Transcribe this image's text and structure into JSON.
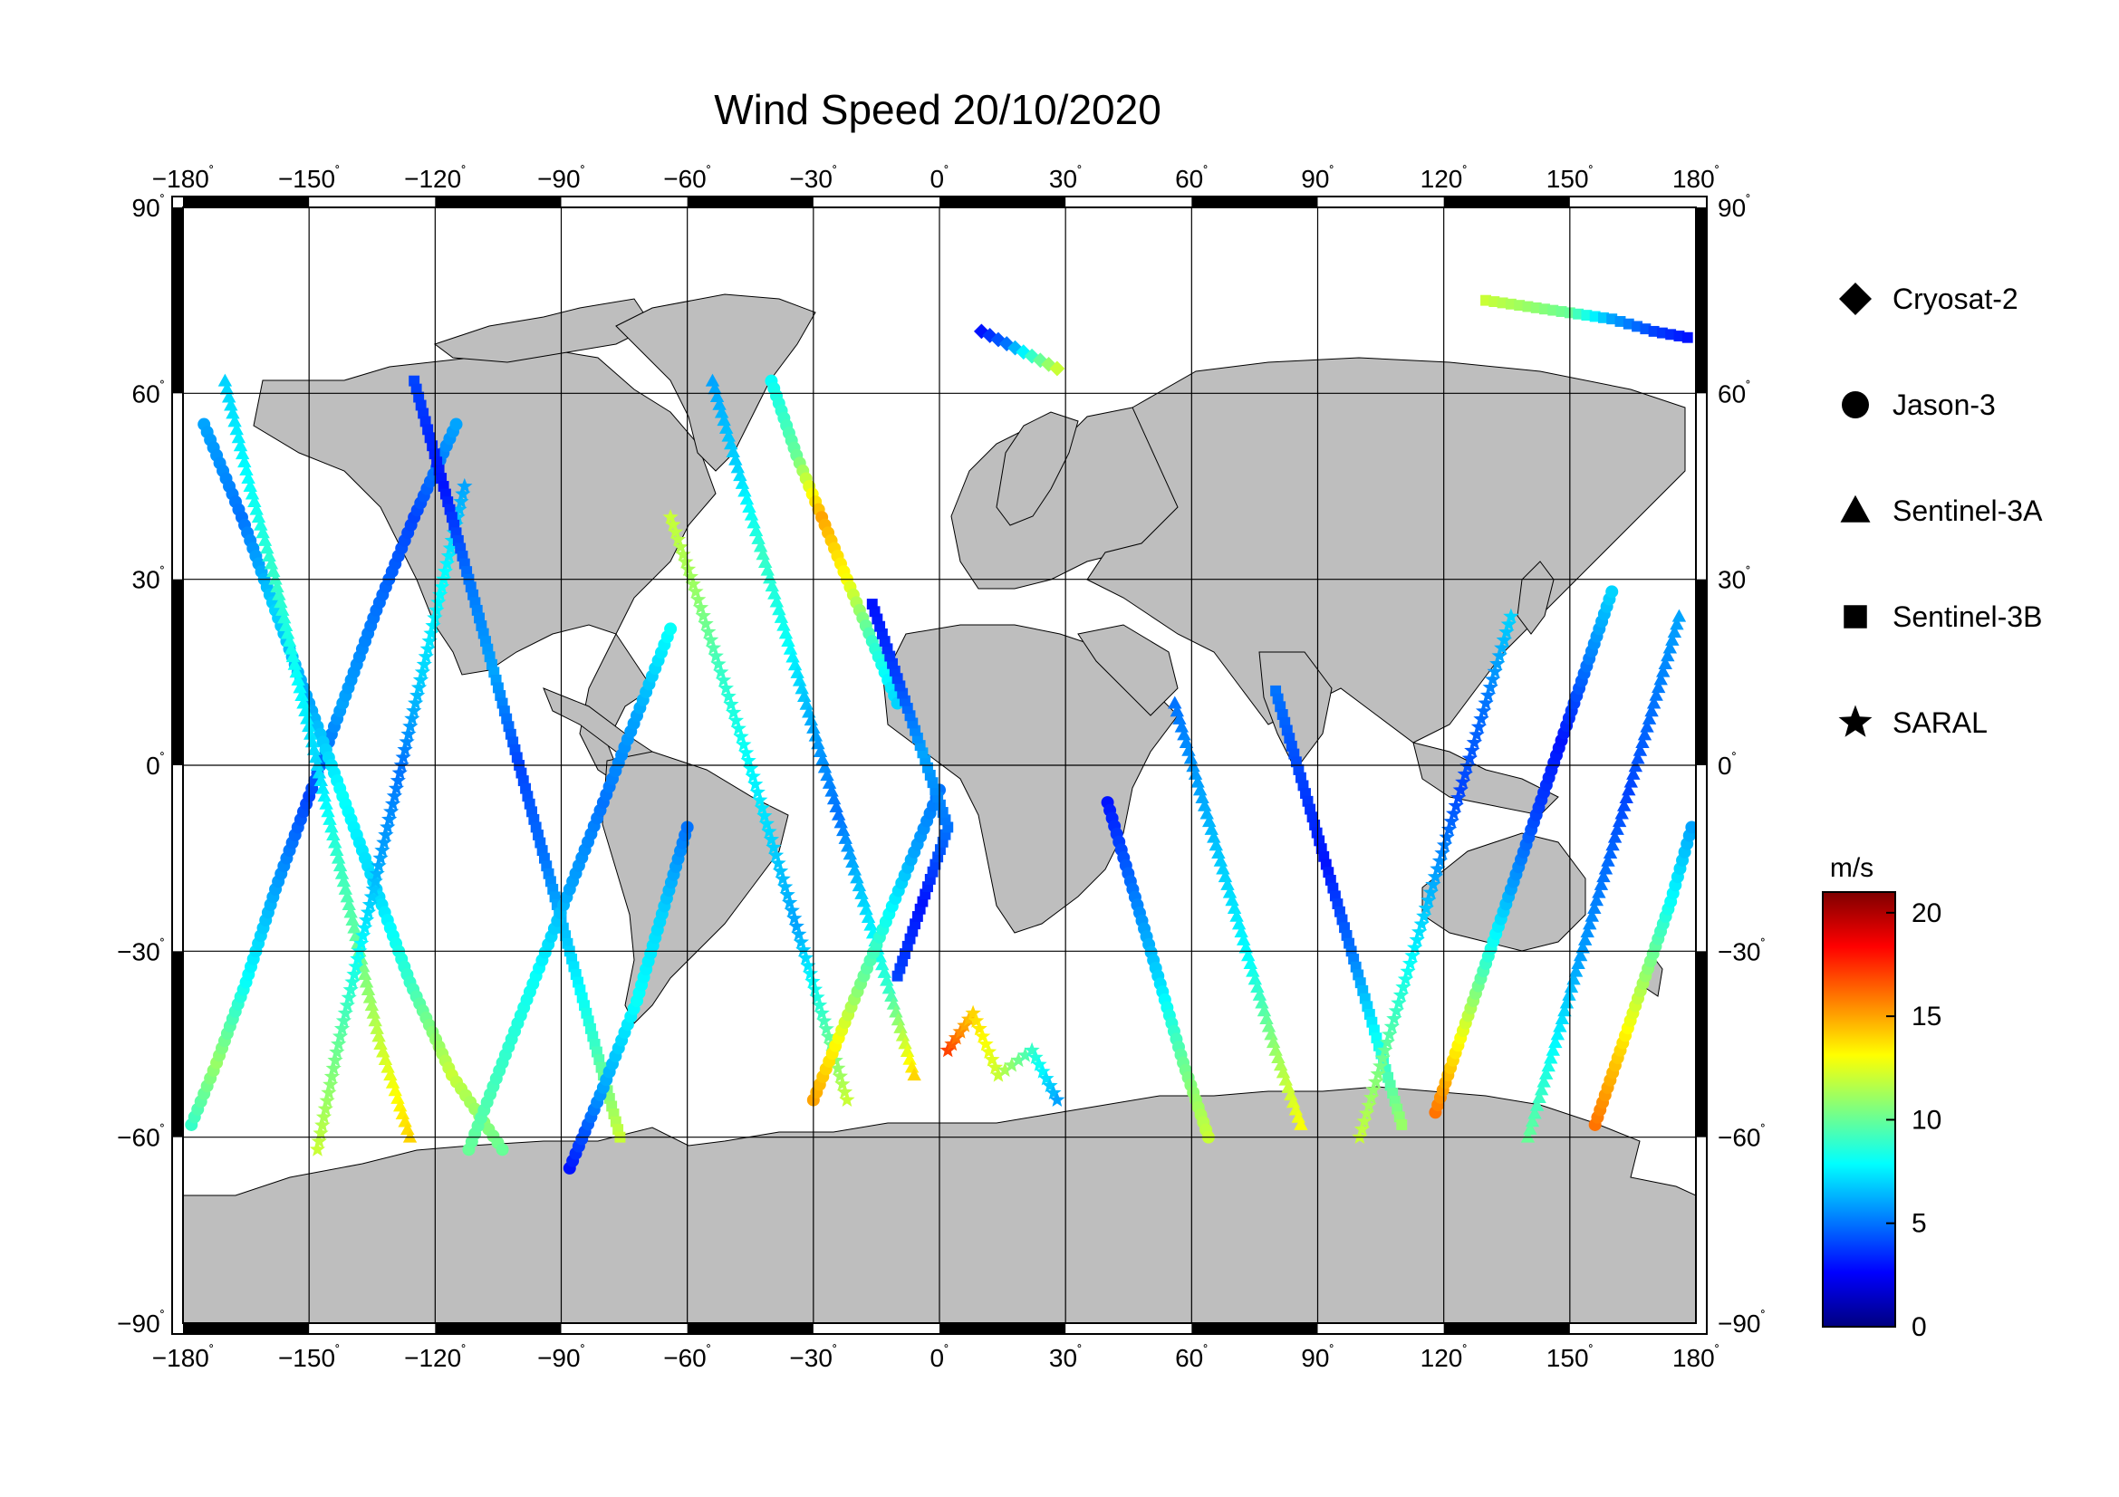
{
  "title": "Wind Speed 20/10/2020",
  "colorbar": {
    "unit": "m/s",
    "ticks": [
      0,
      5,
      10,
      15,
      20
    ],
    "range": [
      0,
      21
    ],
    "colors": [
      "#00007f",
      "#0000ff",
      "#007fff",
      "#00ffff",
      "#7fff7f",
      "#ffff00",
      "#ff7f00",
      "#ff0000",
      "#7f0000"
    ]
  },
  "legend": [
    {
      "label": "Cryosat-2",
      "marker": "diamond"
    },
    {
      "label": "Jason-3",
      "marker": "circle"
    },
    {
      "label": "Sentinel-3A",
      "marker": "triangle"
    },
    {
      "label": "Sentinel-3B",
      "marker": "square"
    },
    {
      "label": "SARAL",
      "marker": "star"
    }
  ],
  "axes": {
    "lon_ticks": [
      -180,
      -150,
      -120,
      -90,
      -60,
      -30,
      0,
      30,
      60,
      90,
      120,
      150,
      180
    ],
    "lat_ticks": [
      90,
      60,
      30,
      0,
      -30,
      -60,
      -90
    ],
    "lon_range": [
      -180,
      180
    ],
    "lat_range": [
      -90,
      90
    ],
    "grid": true,
    "land_color": "#bebebe",
    "ocean_color": "#ffffff"
  },
  "chart_data": {
    "type": "scatter",
    "title": "Wind Speed 20/10/2020",
    "xlim": [
      -180,
      180
    ],
    "ylim": [
      -90,
      90
    ],
    "color_variable": "wind speed (m/s)",
    "series": [
      {
        "name": "Cryosat-2",
        "marker": "diamond"
      },
      {
        "name": "Jason-3",
        "marker": "circle"
      },
      {
        "name": "Sentinel-3A",
        "marker": "triangle"
      },
      {
        "name": "Sentinel-3B",
        "marker": "square"
      },
      {
        "name": "SARAL",
        "marker": "star"
      }
    ],
    "tracks": [
      {
        "series": "Jason-3",
        "points": [
          [
            -178,
            -58,
            9
          ],
          [
            -172,
            -48,
            11
          ],
          [
            -165,
            -35,
            8
          ],
          [
            -158,
            -20,
            6
          ],
          [
            -150,
            -5,
            4
          ],
          [
            -142,
            10,
            6
          ],
          [
            -134,
            25,
            5
          ],
          [
            -125,
            40,
            4
          ],
          [
            -115,
            55,
            6
          ]
        ]
      },
      {
        "series": "Jason-3",
        "points": [
          [
            -175,
            55,
            6
          ],
          [
            -166,
            40,
            5
          ],
          [
            -158,
            25,
            7
          ],
          [
            -150,
            10,
            6
          ],
          [
            -142,
            -5,
            8
          ],
          [
            -134,
            -20,
            7
          ],
          [
            -126,
            -35,
            9
          ],
          [
            -116,
            -50,
            12
          ],
          [
            -104,
            -62,
            10
          ]
        ]
      },
      {
        "series": "Sentinel-3A",
        "points": [
          [
            -170,
            62,
            7
          ],
          [
            -164,
            45,
            8
          ],
          [
            -158,
            30,
            9
          ],
          [
            -153,
            15,
            8
          ],
          [
            -148,
            0,
            7
          ],
          [
            -143,
            -15,
            9
          ],
          [
            -138,
            -30,
            10
          ],
          [
            -133,
            -45,
            12
          ],
          [
            -126,
            -60,
            14
          ]
        ]
      },
      {
        "series": "SARAL",
        "points": [
          [
            -148,
            -62,
            12
          ],
          [
            -143,
            -45,
            10
          ],
          [
            -138,
            -30,
            8
          ],
          [
            -133,
            -15,
            6
          ],
          [
            -128,
            0,
            5
          ],
          [
            -123,
            15,
            7
          ],
          [
            -118,
            30,
            8
          ],
          [
            -113,
            45,
            6
          ]
        ]
      },
      {
        "series": "Sentinel-3B",
        "points": [
          [
            -125,
            62,
            4
          ],
          [
            -118,
            45,
            3
          ],
          [
            -112,
            30,
            5
          ],
          [
            -106,
            15,
            6
          ],
          [
            -100,
            0,
            4
          ],
          [
            -94,
            -15,
            5
          ],
          [
            -88,
            -30,
            7
          ],
          [
            -82,
            -45,
            9
          ],
          [
            -76,
            -60,
            12
          ]
        ]
      },
      {
        "series": "Jason-3",
        "points": [
          [
            -112,
            -62,
            10
          ],
          [
            -104,
            -48,
            9
          ],
          [
            -96,
            -34,
            8
          ],
          [
            -88,
            -20,
            6
          ],
          [
            -80,
            -6,
            5
          ],
          [
            -72,
            8,
            6
          ],
          [
            -64,
            22,
            8
          ]
        ]
      },
      {
        "series": "Jason-3",
        "points": [
          [
            -88,
            -65,
            3
          ],
          [
            -80,
            -52,
            6
          ],
          [
            -72,
            -38,
            8
          ],
          [
            -66,
            -24,
            7
          ],
          [
            -60,
            -10,
            5
          ]
        ]
      },
      {
        "series": "SARAL",
        "points": [
          [
            -64,
            40,
            12
          ],
          [
            -58,
            28,
            11
          ],
          [
            -52,
            15,
            9
          ],
          [
            -46,
            2,
            8
          ],
          [
            -40,
            -12,
            7
          ],
          [
            -34,
            -26,
            6
          ],
          [
            -28,
            -40,
            9
          ],
          [
            -22,
            -54,
            12
          ]
        ]
      },
      {
        "series": "Sentinel-3A",
        "points": [
          [
            -54,
            62,
            6
          ],
          [
            -48,
            48,
            7
          ],
          [
            -42,
            34,
            9
          ],
          [
            -36,
            20,
            8
          ],
          [
            -30,
            6,
            6
          ],
          [
            -24,
            -8,
            5
          ],
          [
            -18,
            -22,
            7
          ],
          [
            -12,
            -36,
            9
          ],
          [
            -6,
            -50,
            14
          ]
        ]
      },
      {
        "series": "Jason-3",
        "points": [
          [
            -40,
            62,
            8
          ],
          [
            -34,
            50,
            10
          ],
          [
            -28,
            40,
            15
          ],
          [
            -22,
            30,
            13
          ],
          [
            -16,
            20,
            9
          ],
          [
            -10,
            10,
            7
          ]
        ]
      },
      {
        "series": "Jason-3",
        "points": [
          [
            -30,
            -54,
            15
          ],
          [
            -24,
            -44,
            13
          ],
          [
            -18,
            -34,
            10
          ],
          [
            -12,
            -24,
            8
          ],
          [
            -6,
            -14,
            6
          ],
          [
            0,
            -4,
            5
          ]
        ]
      },
      {
        "series": "Sentinel-3B",
        "points": [
          [
            -10,
            -34,
            4
          ],
          [
            -4,
            -22,
            3
          ],
          [
            2,
            -10,
            5
          ],
          [
            -4,
            2,
            6
          ],
          [
            -10,
            14,
            4
          ],
          [
            -16,
            26,
            3
          ]
        ]
      },
      {
        "series": "SARAL",
        "points": [
          [
            2,
            -46,
            17
          ],
          [
            8,
            -40,
            14
          ],
          [
            14,
            -50,
            12
          ],
          [
            22,
            -46,
            9
          ],
          [
            28,
            -54,
            6
          ]
        ]
      },
      {
        "series": "Jason-3",
        "points": [
          [
            40,
            -6,
            3
          ],
          [
            46,
            -20,
            5
          ],
          [
            52,
            -34,
            7
          ],
          [
            58,
            -48,
            10
          ],
          [
            64,
            -60,
            12
          ]
        ]
      },
      {
        "series": "Sentinel-3A",
        "points": [
          [
            56,
            10,
            5
          ],
          [
            62,
            -4,
            6
          ],
          [
            68,
            -18,
            7
          ],
          [
            74,
            -32,
            8
          ],
          [
            80,
            -46,
            11
          ],
          [
            86,
            -58,
            13
          ]
        ]
      },
      {
        "series": "Sentinel-3B",
        "points": [
          [
            80,
            12,
            5
          ],
          [
            86,
            -2,
            4
          ],
          [
            92,
            -16,
            3
          ],
          [
            98,
            -30,
            5
          ],
          [
            104,
            -44,
            8
          ],
          [
            110,
            -58,
            11
          ]
        ]
      },
      {
        "series": "SARAL",
        "points": [
          [
            100,
            -60,
            12
          ],
          [
            106,
            -46,
            10
          ],
          [
            112,
            -32,
            8
          ],
          [
            118,
            -18,
            6
          ],
          [
            124,
            -4,
            4
          ],
          [
            130,
            10,
            5
          ],
          [
            136,
            24,
            7
          ]
        ]
      },
      {
        "series": "Jason-3",
        "points": [
          [
            118,
            -56,
            16
          ],
          [
            124,
            -44,
            13
          ],
          [
            130,
            -32,
            9
          ],
          [
            136,
            -20,
            6
          ],
          [
            142,
            -8,
            4
          ],
          [
            148,
            4,
            3
          ],
          [
            154,
            16,
            5
          ],
          [
            160,
            28,
            7
          ]
        ]
      },
      {
        "series": "Sentinel-3A",
        "points": [
          [
            140,
            -60,
            10
          ],
          [
            146,
            -46,
            8
          ],
          [
            152,
            -32,
            6
          ],
          [
            158,
            -18,
            5
          ],
          [
            164,
            -4,
            4
          ],
          [
            170,
            10,
            5
          ],
          [
            176,
            24,
            6
          ]
        ]
      },
      {
        "series": "Jason-3",
        "points": [
          [
            156,
            -58,
            16
          ],
          [
            162,
            -46,
            14
          ],
          [
            168,
            -34,
            11
          ],
          [
            174,
            -22,
            8
          ],
          [
            179,
            -10,
            6
          ]
        ]
      },
      {
        "series": "Sentinel-3B",
        "points": [
          [
            130,
            75,
            12
          ],
          [
            140,
            74,
            11
          ],
          [
            150,
            73,
            10
          ],
          [
            160,
            72,
            6
          ],
          [
            170,
            70,
            4
          ],
          [
            178,
            69,
            3
          ]
        ]
      },
      {
        "series": "Cryosat-2",
        "points": [
          [
            10,
            70,
            3
          ],
          [
            16,
            68,
            5
          ],
          [
            22,
            66,
            9
          ],
          [
            28,
            64,
            12
          ]
        ]
      }
    ]
  }
}
